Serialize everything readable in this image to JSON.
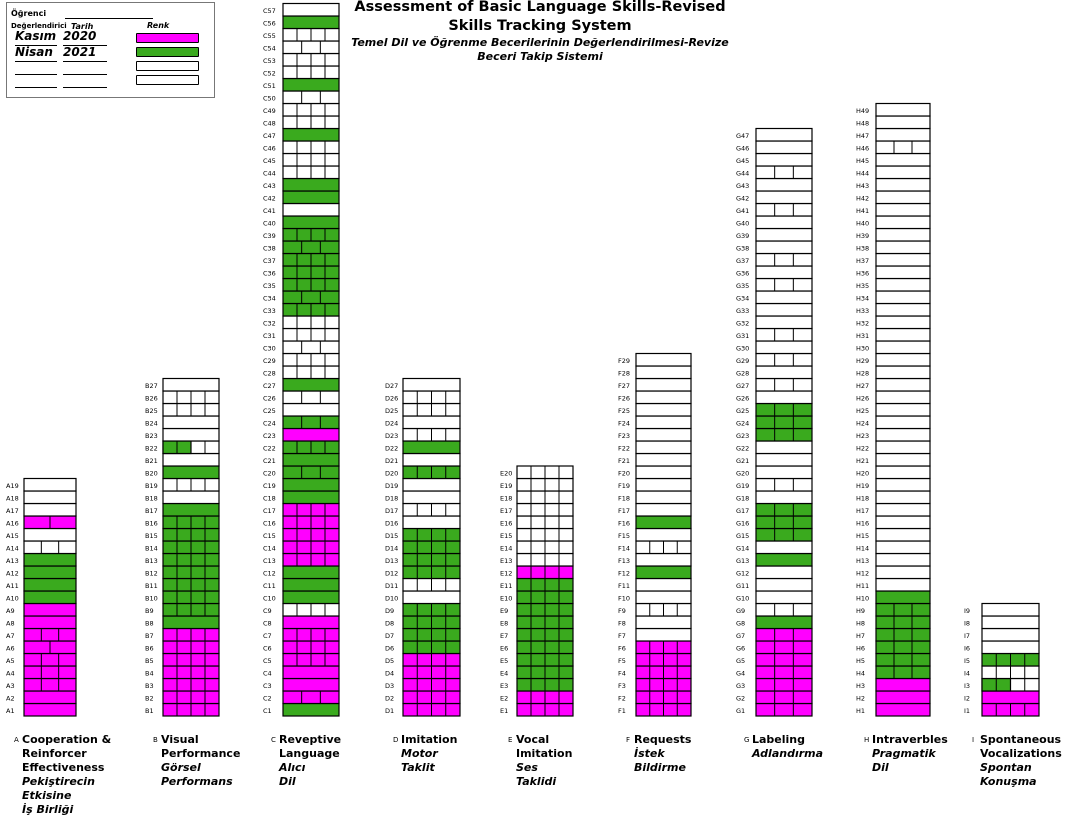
{
  "header": {
    "title_line1": "Assessment of Basic Language Skills-Revised",
    "title_line2": "Skills Tracking System",
    "subtitle_line1": "Temel Dil ve Öğrenme Becerilerinin Değerlendirilmesi-Revize",
    "subtitle_line2": "Beceri Takip Sistemi"
  },
  "legend": {
    "student_label": "Öğrenci",
    "evaluator_label": "Değerlendirici",
    "date_label": "Tarih",
    "color_label": "Renk",
    "rows": [
      {
        "evaluator": "Kasım",
        "date": "2020",
        "color": "#ff00ff"
      },
      {
        "evaluator": "Nisan",
        "date": "2021",
        "color": "#3aaa1e"
      },
      {
        "evaluator": "",
        "date": "",
        "color": "#ffffff"
      },
      {
        "evaluator": "",
        "date": "",
        "color": "#ffffff"
      }
    ]
  },
  "colors": {
    "magenta": "#ff00ff",
    "green": "#3aaa1e",
    "empty": "#ffffff",
    "grid": "#000000"
  },
  "chart_data": {
    "type": "table",
    "description_levels": [
      "empty",
      "magenta",
      "green"
    ],
    "columns": [
      {
        "letter": "A",
        "prefix": "A",
        "count": 19,
        "caption": [
          "Cooperation &",
          "Reinforcer",
          "Effectiveness"
        ],
        "caption_tr": [
          "Pekiştirecin",
          "Etkisine",
          "İş Birliği"
        ],
        "magenta": [
          1,
          2,
          3,
          4,
          5,
          6,
          7,
          8,
          9,
          16
        ],
        "green": [
          10,
          11,
          12,
          13
        ],
        "stripes": [
          0,
          0,
          2,
          2,
          2,
          1,
          2,
          0,
          0,
          0,
          0,
          0,
          0,
          2,
          0,
          1,
          0,
          0,
          0
        ]
      },
      {
        "letter": "B",
        "prefix": "B",
        "count": 27,
        "caption": [
          "Visual",
          "Performance"
        ],
        "caption_tr": [
          "Görsel",
          "Performans"
        ],
        "magenta": [
          1,
          2,
          3,
          4,
          5,
          6,
          7
        ],
        "green": [
          8,
          9,
          10,
          11,
          12,
          13,
          14,
          15,
          16,
          17,
          20
        ],
        "green_left": [
          22
        ],
        "stripes": [
          3,
          3,
          3,
          3,
          3,
          3,
          3,
          0,
          3,
          3,
          3,
          3,
          3,
          3,
          3,
          3,
          0,
          0,
          3,
          0,
          0,
          3,
          0,
          0,
          3,
          3,
          0
        ]
      },
      {
        "letter": "C",
        "prefix": "C",
        "count": 57,
        "caption": [
          "Reveptive",
          "Language"
        ],
        "caption_tr": [
          "Alıcı",
          "Dil"
        ],
        "magenta": [
          2,
          3,
          4,
          5,
          6,
          7,
          8,
          13,
          14,
          15,
          16,
          17,
          23
        ],
        "green": [
          1,
          10,
          11,
          12,
          18,
          19,
          20,
          21,
          22,
          24,
          27,
          33,
          34,
          35,
          36,
          37,
          38,
          39,
          40,
          42,
          43,
          47,
          51,
          56
        ],
        "stripes": [
          0,
          2,
          0,
          0,
          3,
          3,
          3,
          0,
          3,
          0,
          0,
          0,
          3,
          3,
          3,
          3,
          3,
          0,
          0,
          2,
          0,
          3,
          0,
          2,
          0,
          2,
          0,
          3,
          3,
          2,
          3,
          3,
          3,
          2,
          3,
          3,
          3,
          2,
          3,
          0,
          0,
          0,
          0,
          3,
          3,
          3,
          0,
          3,
          3,
          2,
          0,
          3,
          3,
          2,
          3,
          0,
          0
        ]
      },
      {
        "letter": "D",
        "prefix": "D",
        "count": 27,
        "caption": [
          "Imitation"
        ],
        "caption_tr": [
          "Motor",
          "Taklit"
        ],
        "magenta": [
          1,
          2,
          3,
          4,
          5
        ],
        "green": [
          6,
          7,
          8,
          9,
          12,
          13,
          14,
          15,
          20,
          22
        ],
        "stripes": [
          3,
          3,
          3,
          3,
          3,
          3,
          3,
          3,
          3,
          0,
          3,
          3,
          3,
          3,
          3,
          0,
          3,
          0,
          0,
          3,
          0,
          0,
          3,
          0,
          3,
          3,
          0
        ]
      },
      {
        "letter": "E",
        "prefix": "E",
        "count": 20,
        "caption": [
          "Vocal",
          "Imitation"
        ],
        "caption_tr": [
          "Ses",
          "Taklidi"
        ],
        "magenta": [
          1,
          2,
          12
        ],
        "green": [
          3,
          4,
          5,
          6,
          7,
          8,
          9,
          10,
          11
        ],
        "stripes": [
          3,
          3,
          3,
          3,
          3,
          3,
          3,
          3,
          3,
          3,
          3,
          3,
          3,
          3,
          3,
          3,
          3,
          3,
          3,
          3
        ]
      },
      {
        "letter": "F",
        "prefix": "F",
        "count": 29,
        "caption": [
          "Requests"
        ],
        "caption_tr": [
          "İstek",
          "Bildirme"
        ],
        "magenta": [
          1,
          2,
          3,
          4,
          5,
          6
        ],
        "green": [
          12,
          16
        ],
        "stripes": [
          3,
          3,
          3,
          3,
          3,
          3,
          0,
          0,
          3,
          0,
          0,
          0,
          0,
          3,
          0,
          0,
          0,
          0,
          0,
          0,
          0,
          0,
          0,
          0,
          0,
          0,
          0,
          0,
          0
        ]
      },
      {
        "letter": "G",
        "prefix": "G",
        "count": 47,
        "caption": [
          "Labeling"
        ],
        "caption_tr": [
          "Adlandırma"
        ],
        "magenta": [
          1,
          2,
          3,
          4,
          5,
          6,
          7
        ],
        "green": [
          8,
          13,
          15,
          16,
          17,
          23,
          24,
          25
        ],
        "stripes": [
          2,
          2,
          2,
          2,
          2,
          2,
          2,
          0,
          2,
          0,
          0,
          0,
          0,
          0,
          2,
          2,
          2,
          0,
          2,
          0,
          0,
          0,
          2,
          2,
          2,
          0,
          2,
          0,
          2,
          0,
          2,
          0,
          0,
          0,
          2,
          0,
          2,
          0,
          0,
          0,
          2,
          0,
          0,
          2,
          0,
          0,
          0
        ]
      },
      {
        "letter": "H",
        "prefix": "H",
        "count": 49,
        "caption": [
          "Intraverbles"
        ],
        "caption_tr": [
          "Pragmatik",
          "Dil"
        ],
        "magenta": [
          1,
          2,
          3
        ],
        "green": [
          4,
          5,
          6,
          7,
          8,
          9,
          10
        ],
        "stripes": [
          0,
          0,
          0,
          2,
          2,
          2,
          2,
          2,
          2,
          0,
          0,
          0,
          0,
          0,
          0,
          0,
          0,
          0,
          0,
          0,
          0,
          0,
          0,
          0,
          0,
          0,
          0,
          0,
          0,
          0,
          0,
          0,
          0,
          0,
          0,
          0,
          0,
          0,
          0,
          0,
          0,
          0,
          0,
          0,
          0,
          2,
          0,
          0,
          0
        ]
      },
      {
        "letter": "I",
        "prefix": "I",
        "count": 9,
        "caption": [
          "Spontaneous",
          "Vocalizations"
        ],
        "caption_tr": [
          "Spontan",
          "Konuşma"
        ],
        "magenta": [
          1,
          2
        ],
        "green": [
          5
        ],
        "green_left": [
          3
        ],
        "stripes": [
          3,
          0,
          3,
          3,
          3,
          0,
          0,
          0,
          0
        ]
      }
    ]
  }
}
